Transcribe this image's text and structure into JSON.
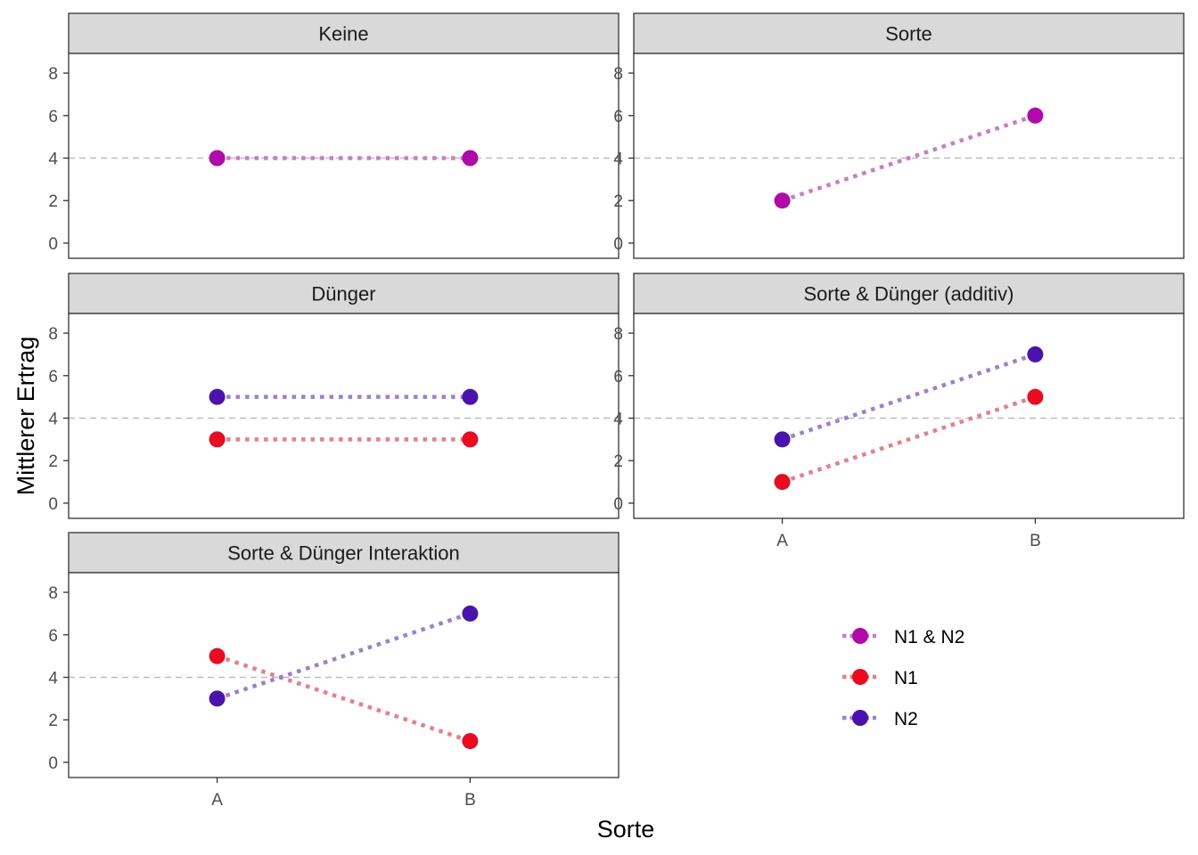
{
  "chart_data": {
    "type": "line",
    "xlabel": "Sorte",
    "ylabel": "Mittlerer Ertrag",
    "categories": [
      "A",
      "B"
    ],
    "ylim": [
      0,
      8
    ],
    "yticks": [
      0,
      2,
      4,
      6,
      8
    ],
    "reference_line": 4,
    "colors": {
      "N1 & N2": "#B20AAA",
      "N1": "#EE0A1E",
      "N2": "#4A12AE"
    },
    "line_colors": {
      "N1 & N2": "#CC7ACC",
      "N1": "#EE7C86",
      "N2": "#9A80D2"
    },
    "legend": {
      "placement": "bottom-right",
      "entries": [
        "N1 & N2",
        "N1",
        "N2"
      ]
    },
    "panels": [
      {
        "title": "Keine",
        "series": [
          {
            "name": "N1 & N2",
            "values": [
              4,
              4
            ]
          }
        ]
      },
      {
        "title": "Sorte",
        "series": [
          {
            "name": "N1 & N2",
            "values": [
              2,
              6
            ]
          }
        ]
      },
      {
        "title": "Dünger",
        "series": [
          {
            "name": "N1",
            "values": [
              3,
              3
            ]
          },
          {
            "name": "N2",
            "values": [
              5,
              5
            ]
          }
        ]
      },
      {
        "title": "Sorte & Dünger (additiv)",
        "series": [
          {
            "name": "N1",
            "values": [
              1,
              5
            ]
          },
          {
            "name": "N2",
            "values": [
              3,
              7
            ]
          }
        ]
      },
      {
        "title": "Sorte & Dünger Interaktion",
        "series": [
          {
            "name": "N1",
            "values": [
              5,
              1
            ]
          },
          {
            "name": "N2",
            "values": [
              3,
              7
            ]
          }
        ]
      }
    ]
  }
}
